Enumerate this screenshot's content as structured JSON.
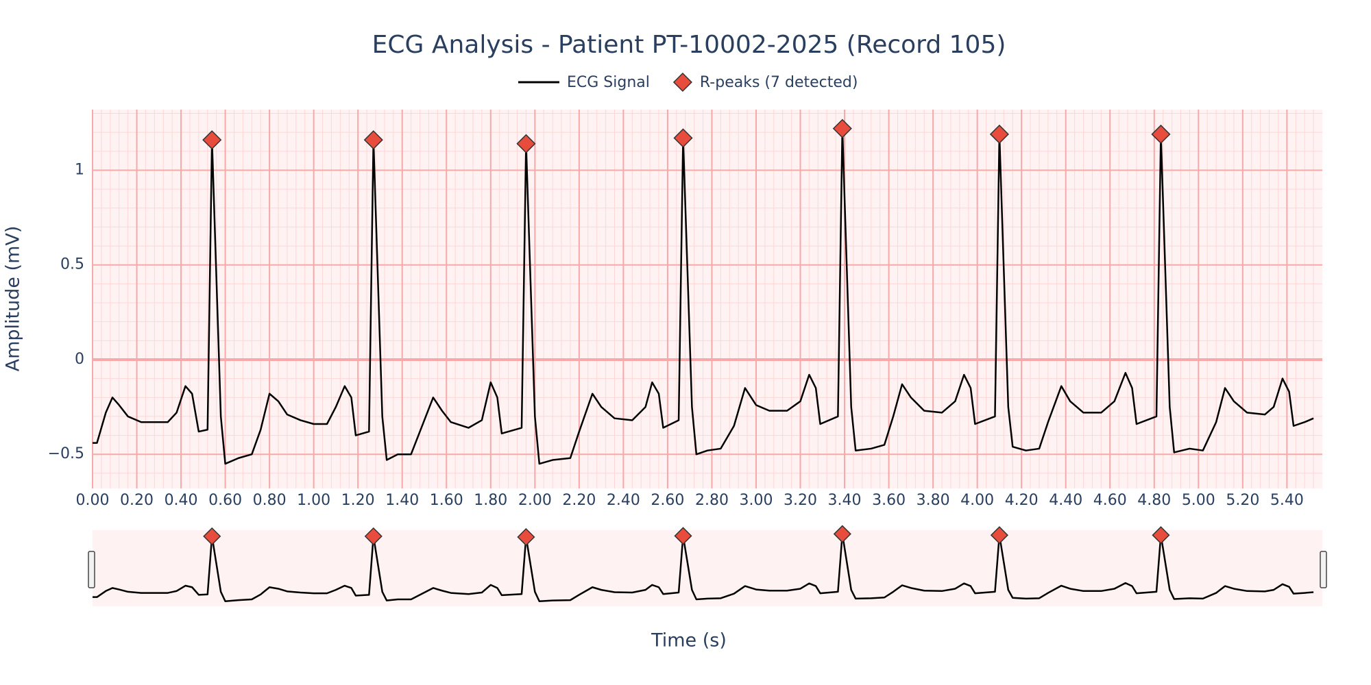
{
  "chart_data": {
    "type": "line",
    "title": "ECG Analysis - Patient PT-10002-2025 (Record 105)",
    "xlabel": "Time (s)",
    "ylabel": "Amplitude (mV)",
    "series": [
      {
        "name": "ECG Signal",
        "color": "#000000",
        "mode": "lines",
        "x": [
          0.0,
          0.02,
          0.06,
          0.09,
          0.12,
          0.16,
          0.22,
          0.28,
          0.34,
          0.38,
          0.42,
          0.45,
          0.48,
          0.52,
          0.54,
          0.58,
          0.6,
          0.66,
          0.72,
          0.76,
          0.8,
          0.84,
          0.88,
          0.94,
          1.0,
          1.06,
          1.1,
          1.14,
          1.17,
          1.19,
          1.25,
          1.27,
          1.31,
          1.33,
          1.38,
          1.44,
          1.48,
          1.54,
          1.58,
          1.62,
          1.7,
          1.76,
          1.8,
          1.83,
          1.85,
          1.94,
          1.96,
          2.0,
          2.02,
          2.08,
          2.16,
          2.2,
          2.26,
          2.3,
          2.36,
          2.44,
          2.5,
          2.53,
          2.56,
          2.58,
          2.65,
          2.67,
          2.71,
          2.73,
          2.78,
          2.84,
          2.9,
          2.95,
          3.0,
          3.06,
          3.14,
          3.2,
          3.24,
          3.27,
          3.29,
          3.37,
          3.39,
          3.43,
          3.45,
          3.52,
          3.58,
          3.62,
          3.66,
          3.7,
          3.76,
          3.84,
          3.9,
          3.94,
          3.97,
          3.99,
          4.08,
          4.1,
          4.14,
          4.16,
          4.22,
          4.28,
          4.32,
          4.38,
          4.42,
          4.48,
          4.56,
          4.62,
          4.67,
          4.7,
          4.72,
          4.81,
          4.83,
          4.87,
          4.89,
          4.96,
          5.02,
          5.08,
          5.12,
          5.16,
          5.22,
          5.3,
          5.34,
          5.38,
          5.41,
          5.43,
          5.48,
          5.52
        ],
        "values": [
          -0.44,
          -0.44,
          -0.28,
          -0.2,
          -0.24,
          -0.3,
          -0.33,
          -0.33,
          -0.33,
          -0.28,
          -0.14,
          -0.18,
          -0.38,
          -0.37,
          1.16,
          -0.3,
          -0.55,
          -0.52,
          -0.5,
          -0.37,
          -0.18,
          -0.22,
          -0.29,
          -0.32,
          -0.34,
          -0.34,
          -0.25,
          -0.14,
          -0.2,
          -0.4,
          -0.38,
          1.16,
          -0.3,
          -0.53,
          -0.5,
          -0.5,
          -0.38,
          -0.2,
          -0.27,
          -0.33,
          -0.36,
          -0.32,
          -0.12,
          -0.2,
          -0.39,
          -0.36,
          1.14,
          -0.3,
          -0.55,
          -0.53,
          -0.52,
          -0.38,
          -0.18,
          -0.25,
          -0.31,
          -0.32,
          -0.25,
          -0.12,
          -0.18,
          -0.36,
          -0.32,
          1.17,
          -0.25,
          -0.5,
          -0.48,
          -0.47,
          -0.35,
          -0.15,
          -0.24,
          -0.27,
          -0.27,
          -0.22,
          -0.08,
          -0.15,
          -0.34,
          -0.3,
          1.22,
          -0.25,
          -0.48,
          -0.47,
          -0.45,
          -0.3,
          -0.13,
          -0.2,
          -0.27,
          -0.28,
          -0.22,
          -0.08,
          -0.15,
          -0.34,
          -0.3,
          1.19,
          -0.25,
          -0.46,
          -0.48,
          -0.47,
          -0.33,
          -0.14,
          -0.22,
          -0.28,
          -0.28,
          -0.22,
          -0.07,
          -0.15,
          -0.34,
          -0.3,
          1.19,
          -0.25,
          -0.49,
          -0.47,
          -0.48,
          -0.33,
          -0.15,
          -0.22,
          -0.28,
          -0.29,
          -0.25,
          -0.1,
          -0.17,
          -0.35,
          -0.33,
          -0.31
        ]
      },
      {
        "name": "R-peaks (7 detected)",
        "color": "#e74c3c",
        "mode": "markers",
        "x": [
          0.54,
          1.27,
          1.96,
          2.67,
          3.39,
          4.1,
          4.83
        ],
        "values": [
          1.16,
          1.16,
          1.14,
          1.17,
          1.22,
          1.19,
          1.19
        ]
      }
    ],
    "xlim": [
      0,
      5.56
    ],
    "xticks": [
      {
        "value": 0,
        "label": "0.00"
      },
      {
        "value": 0.2,
        "label": "0.20"
      },
      {
        "value": 0.4,
        "label": "0.40"
      },
      {
        "value": 0.6,
        "label": "0.60"
      },
      {
        "value": 0.8,
        "label": "0.80"
      },
      {
        "value": 1,
        "label": "1.00"
      },
      {
        "value": 1.2,
        "label": "1.20"
      },
      {
        "value": 1.4,
        "label": "1.40"
      },
      {
        "value": 1.6,
        "label": "1.60"
      },
      {
        "value": 1.8,
        "label": "1.80"
      },
      {
        "value": 2,
        "label": "2.00"
      },
      {
        "value": 2.2,
        "label": "2.20"
      },
      {
        "value": 2.4,
        "label": "2.40"
      },
      {
        "value": 2.6,
        "label": "2.60"
      },
      {
        "value": 2.8,
        "label": "2.80"
      },
      {
        "value": 3,
        "label": "3.00"
      },
      {
        "value": 3.2,
        "label": "3.20"
      },
      {
        "value": 3.4,
        "label": "3.40"
      },
      {
        "value": 3.6,
        "label": "3.60"
      },
      {
        "value": 3.8,
        "label": "3.80"
      },
      {
        "value": 4,
        "label": "4.00"
      },
      {
        "value": 4.2,
        "label": "4.20"
      },
      {
        "value": 4.4,
        "label": "4.40"
      },
      {
        "value": 4.6,
        "label": "4.60"
      },
      {
        "value": 4.8,
        "label": "4.80"
      },
      {
        "value": 5,
        "label": "5.00"
      },
      {
        "value": 5.2,
        "label": "5.20"
      },
      {
        "value": 5.4,
        "label": "5.40"
      }
    ],
    "ylim": [
      -0.68,
      1.32
    ],
    "yticks": [
      {
        "value": -0.5,
        "label": "−0.5"
      },
      0,
      0.5,
      1
    ],
    "grid": true,
    "legend": "top",
    "rangeslider": true
  }
}
